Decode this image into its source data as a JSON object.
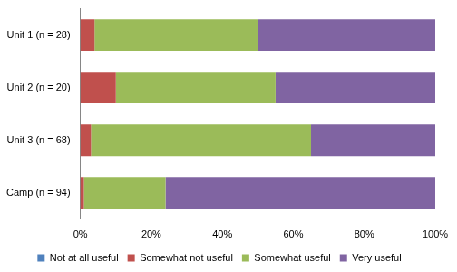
{
  "chart_data": {
    "type": "bar",
    "orientation": "horizontal",
    "stacked": true,
    "categories": [
      "Unit 1 (n = 28)",
      "Unit 2 (n = 20)",
      "Unit 3 (n = 68)",
      "Camp (n = 94)"
    ],
    "series": [
      {
        "name": "Not at all useful",
        "color": "#4f81bd",
        "values": [
          0,
          0,
          0,
          0
        ]
      },
      {
        "name": "Somewhat not useful",
        "color": "#c0504d",
        "values": [
          4,
          10,
          3,
          1
        ]
      },
      {
        "name": "Somewhat useful",
        "color": "#9bbb59",
        "values": [
          46,
          45,
          62,
          23
        ]
      },
      {
        "name": "Very useful",
        "color": "#8064a2",
        "values": [
          50,
          45,
          35,
          76
        ]
      }
    ],
    "xlim": [
      0,
      100
    ],
    "xticks": [
      {
        "value": 0,
        "label": "0%"
      },
      {
        "value": 20,
        "label": "20%"
      },
      {
        "value": 40,
        "label": "40%"
      },
      {
        "value": 60,
        "label": "60%"
      },
      {
        "value": 80,
        "label": "80%"
      },
      {
        "value": 100,
        "label": "100%"
      }
    ],
    "grid": false,
    "legend": "bottom"
  }
}
